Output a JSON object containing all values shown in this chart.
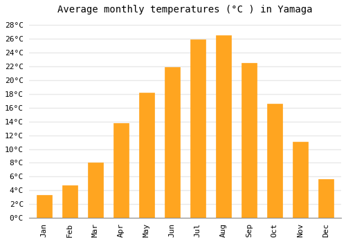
{
  "title": "Average monthly temperatures (°C ) in Yamaga",
  "months": [
    "Jan",
    "Feb",
    "Mar",
    "Apr",
    "May",
    "Jun",
    "Jul",
    "Aug",
    "Sep",
    "Oct",
    "Nov",
    "Dec"
  ],
  "values": [
    3.3,
    4.7,
    8.0,
    13.8,
    18.2,
    21.9,
    25.9,
    26.5,
    22.5,
    16.6,
    11.1,
    5.6
  ],
  "bar_color": "#FFA520",
  "bar_edge_color": "#FFA520",
  "ylim": [
    0,
    29
  ],
  "yticks": [
    0,
    2,
    4,
    6,
    8,
    10,
    12,
    14,
    16,
    18,
    20,
    22,
    24,
    26,
    28
  ],
  "background_color": "#ffffff",
  "plot_bg_color": "#ffffff",
  "grid_color": "#e8e8e8",
  "title_fontsize": 10,
  "tick_fontsize": 8,
  "font_family": "monospace",
  "bar_width": 0.6
}
